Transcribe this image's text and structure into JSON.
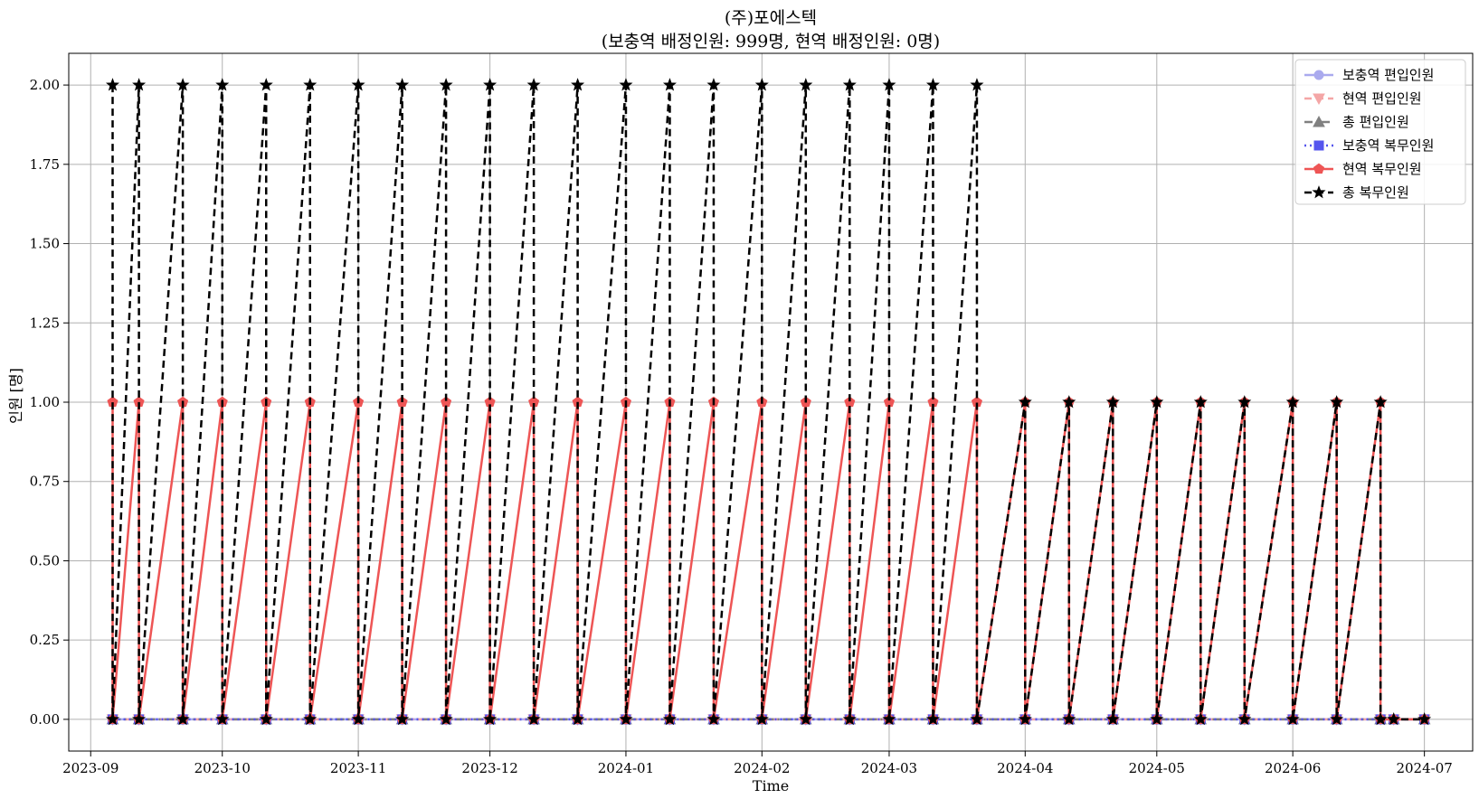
{
  "chart_data": {
    "type": "line",
    "title": "(주)포에스텍",
    "subtitle": "(보충역 배정인원: 999명, 현역 배정인원: 0명)",
    "xlabel": "Time",
    "ylabel": "인원 [명]",
    "ylim": [
      -0.1,
      2.1
    ],
    "xlim": [
      "2023-08-27",
      "2024-07-12"
    ],
    "grid": true,
    "legend_position": "top-right",
    "x_tick_labels": [
      "2023-09",
      "2023-10",
      "2023-11",
      "2023-12",
      "2024-01",
      "2024-02",
      "2024-03",
      "2024-04",
      "2024-05",
      "2024-06",
      "2024-07"
    ],
    "x_tick_dates": [
      "2023-09-01",
      "2023-10-01",
      "2023-11-01",
      "2023-12-01",
      "2024-01-01",
      "2024-02-01",
      "2024-03-01",
      "2024-04-01",
      "2024-05-01",
      "2024-06-01",
      "2024-07-01"
    ],
    "y_tick_labels": [
      "0.00",
      "0.25",
      "0.50",
      "0.75",
      "1.00",
      "1.25",
      "1.50",
      "1.75",
      "2.00"
    ],
    "y_tick_values": [
      0,
      0.25,
      0.5,
      0.75,
      1.0,
      1.25,
      1.5,
      1.75,
      2.0
    ],
    "phase1_dates": [
      "2023-09-06",
      "2023-09-12",
      "2023-09-22",
      "2023-10-01",
      "2023-10-11",
      "2023-10-21",
      "2023-11-01",
      "2023-11-11",
      "2023-11-21",
      "2023-12-01",
      "2023-12-11",
      "2023-12-21",
      "2024-01-01",
      "2024-01-11",
      "2024-01-21",
      "2024-02-01",
      "2024-02-11",
      "2024-02-21",
      "2024-03-01",
      "2024-03-11",
      "2024-03-21"
    ],
    "phase2_dates": [
      "2024-04-01",
      "2024-04-11",
      "2024-04-21",
      "2024-05-01",
      "2024-05-11",
      "2024-05-21",
      "2024-06-01",
      "2024-06-11",
      "2024-06-21"
    ],
    "tail_dates": [
      "2024-06-24",
      "2024-07-01"
    ],
    "series": [
      {
        "name": "보충역 편입인원",
        "color": "#aaaaee",
        "marker": "circle",
        "dash": "solid"
      },
      {
        "name": "현역 편입인원",
        "color": "#f4a6a6",
        "marker": "triangle-down",
        "dash": "dashed"
      },
      {
        "name": "총 편입인원",
        "color": "#808080",
        "marker": "triangle-up",
        "dash": "dashdot"
      },
      {
        "name": "보충역 복무인원",
        "color": "#5555ee",
        "marker": "square",
        "dash": "dotted"
      },
      {
        "name": "현역 복무인원",
        "color": "#ee5555",
        "marker": "pentagon",
        "dash": "solid"
      },
      {
        "name": "총 복무인원",
        "color": "#000000",
        "marker": "star",
        "dash": "dashed"
      }
    ]
  }
}
